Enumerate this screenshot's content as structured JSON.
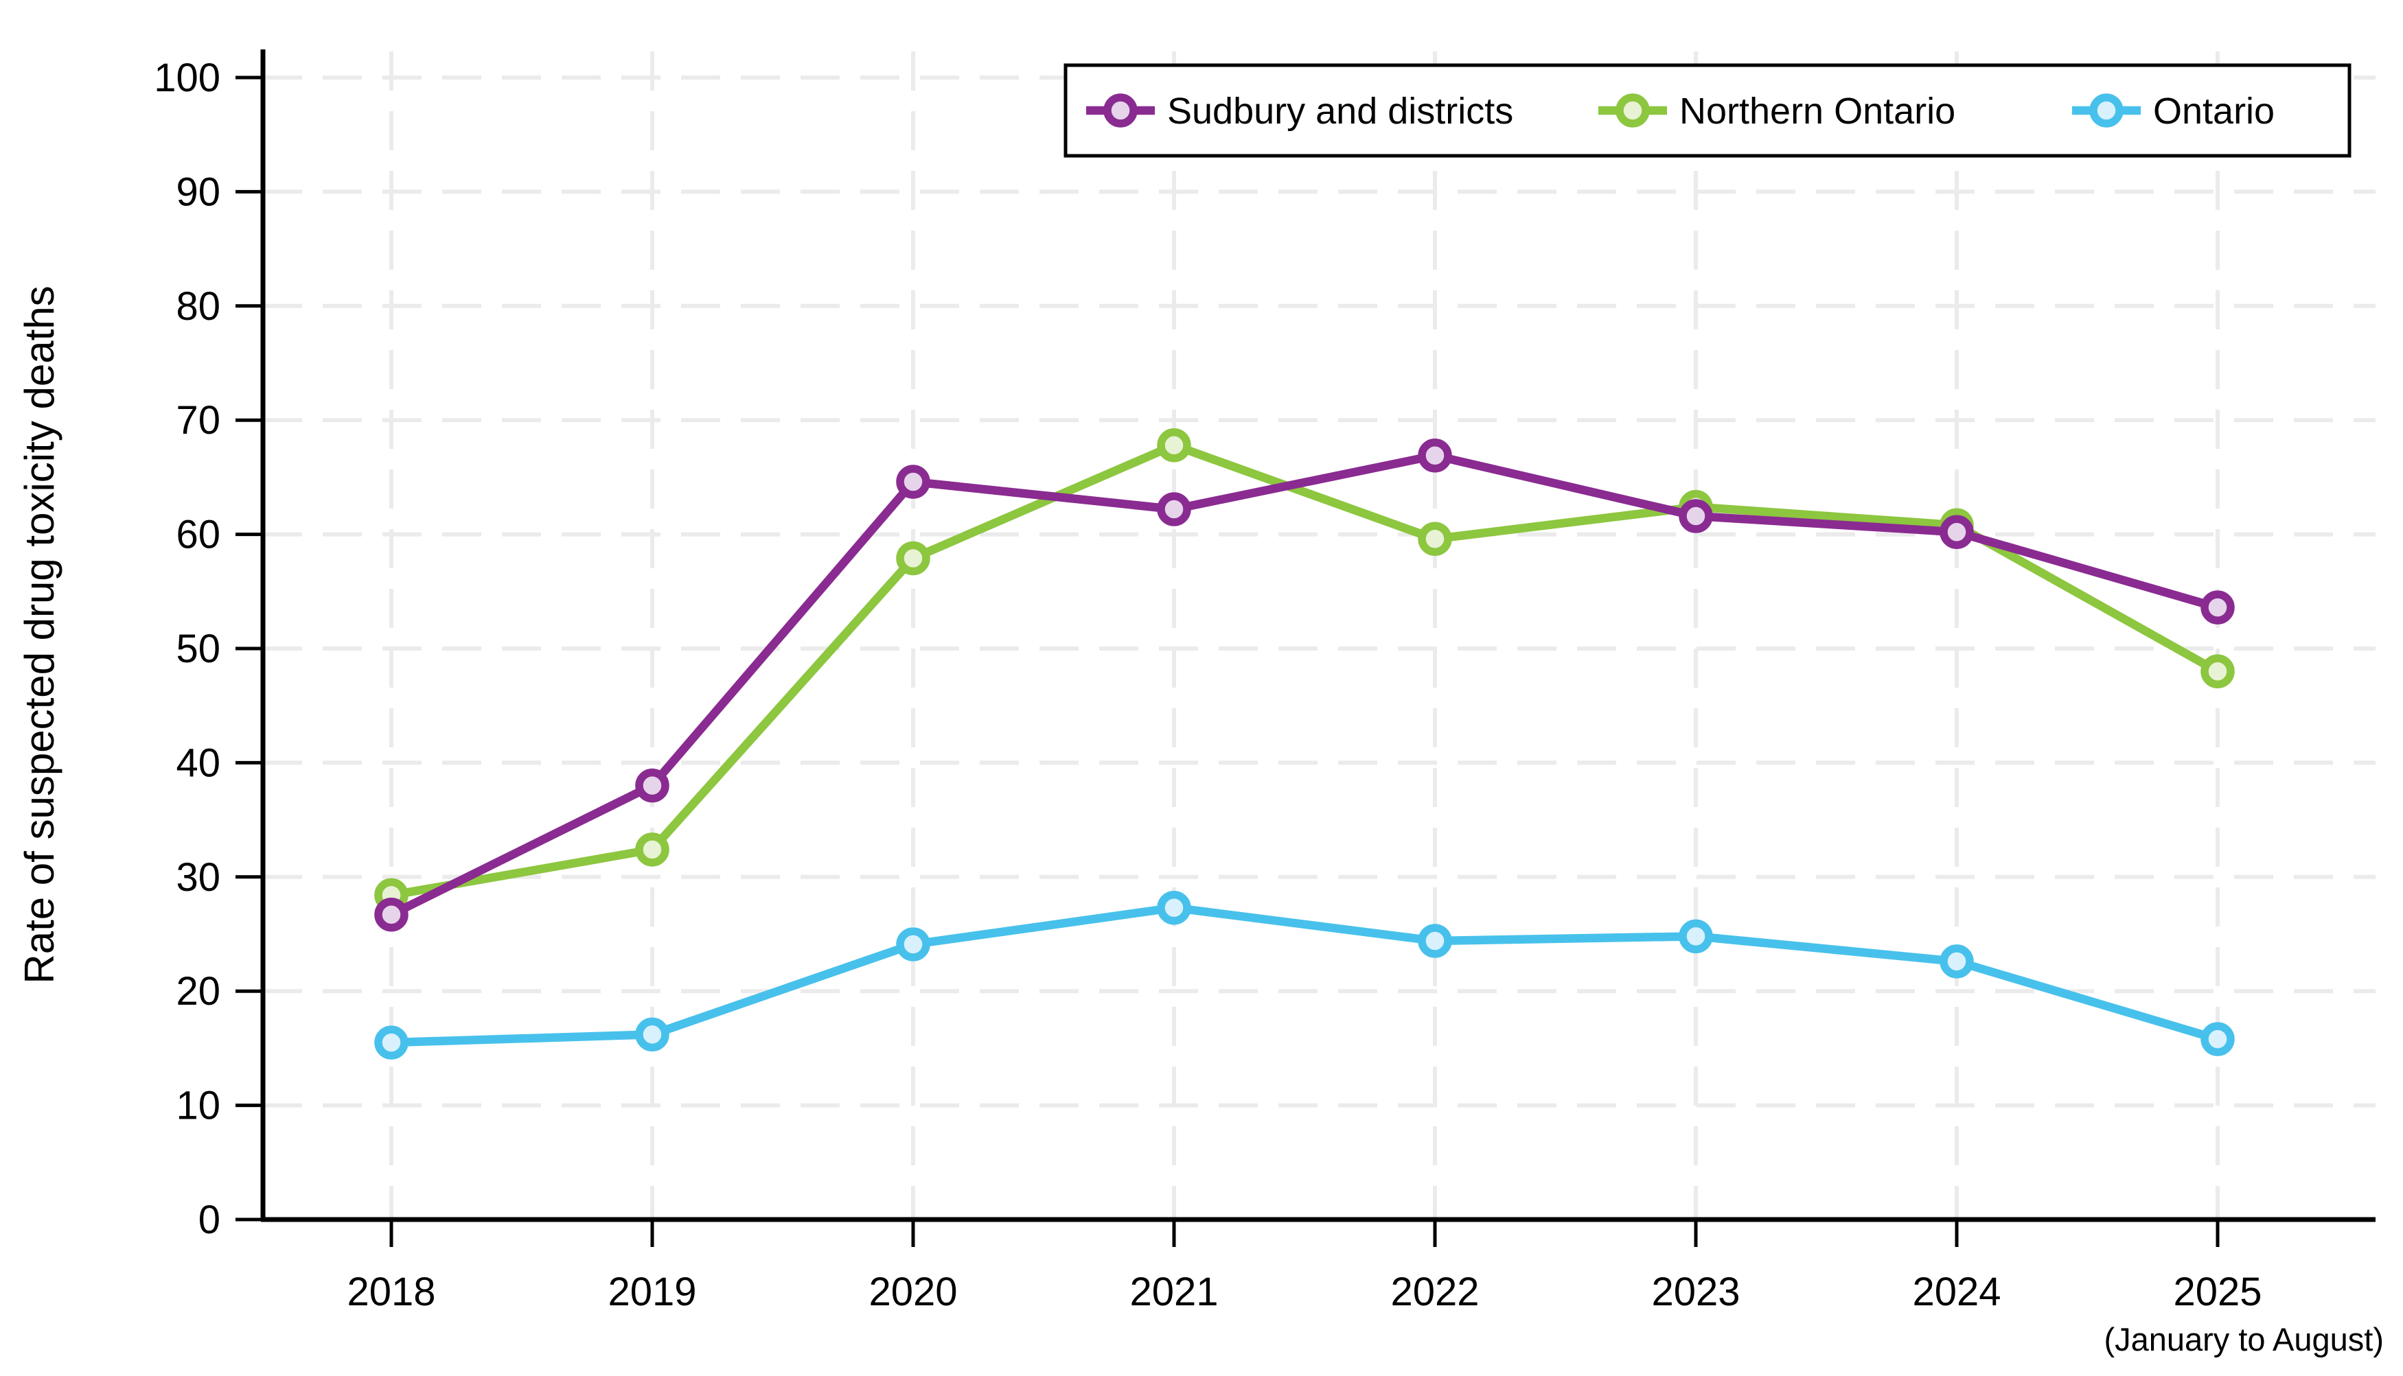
{
  "chart_data": {
    "type": "line",
    "title": "",
    "xlabel": "",
    "ylabel": "Rate of suspected drug toxicity deaths",
    "x_note": "(January to August)",
    "categories": [
      "2018",
      "2019",
      "2020",
      "2021",
      "2022",
      "2023",
      "2024",
      "2025"
    ],
    "ylim": [
      0,
      100
    ],
    "ytick_step": 10,
    "grid": "dashed horizontal and vertical gridlines",
    "legend_position": "top-right-inside-box",
    "series": [
      {
        "name": "Sudbury and districts",
        "slug": "sudbury-and-districts",
        "color": "#8A2B91",
        "marker_fill": "#E6D4EA",
        "values": [
          26.7,
          38.0,
          64.6,
          62.2,
          66.9,
          61.6,
          60.2,
          53.6
        ]
      },
      {
        "name": "Northern Ontario",
        "slug": "northern-ontario",
        "color": "#8DC63F",
        "marker_fill": "#E8F2D5",
        "values": [
          28.4,
          32.4,
          57.9,
          67.8,
          59.6,
          62.4,
          60.8,
          48.0
        ]
      },
      {
        "name": "Ontario",
        "slug": "ontario",
        "color": "#47C1EB",
        "marker_fill": "#D9F1FC",
        "values": [
          15.5,
          16.2,
          24.1,
          27.3,
          24.4,
          24.8,
          22.6,
          15.8
        ]
      }
    ]
  },
  "colors": {
    "axis": "#000000",
    "grid": "#EBEBEB",
    "background": "#FFFFFF",
    "legend_border": "#000000",
    "legend_fill": "#FFFFFF"
  }
}
